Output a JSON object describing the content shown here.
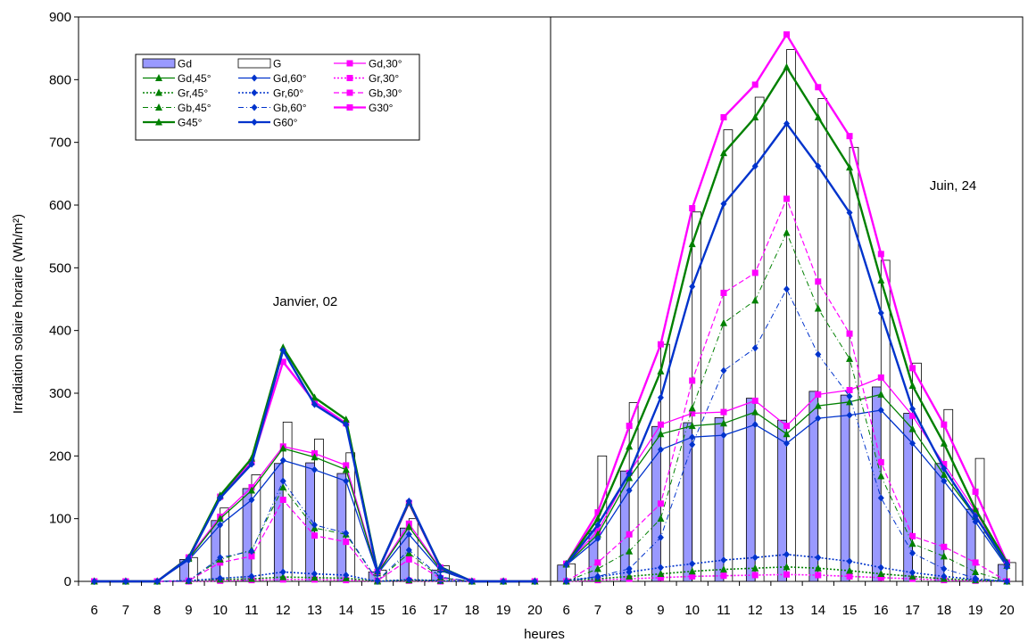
{
  "chart_data": {
    "type": "bar",
    "title": "",
    "xlabel": "heures",
    "ylabel": "Irradiation solaire horaire (Wh/m²)",
    "ylim": [
      0,
      900
    ],
    "yticks": [
      "0",
      "100",
      "200",
      "300",
      "400",
      "500",
      "600",
      "700",
      "800",
      "900"
    ],
    "categories": [
      "6",
      "7",
      "8",
      "9",
      "10",
      "11",
      "12",
      "13",
      "14",
      "15",
      "16",
      "17",
      "18",
      "19",
      "20",
      "6",
      "7",
      "8",
      "9",
      "10",
      "11",
      "12",
      "13",
      "14",
      "15",
      "16",
      "17",
      "18",
      "19",
      "20"
    ],
    "grid": "none",
    "legend_position": "top-left",
    "annotations": [
      "Janvier, 02",
      "Juin, 24"
    ],
    "colors": {
      "Gd": "#9999ff",
      "green": "#008000",
      "blue": "#0033cc",
      "magenta": "#ff00ff"
    },
    "series": [
      {
        "name": "Gd",
        "kind": "bar",
        "values": [
          0,
          0,
          0,
          35,
          97,
          148,
          188,
          189,
          172,
          15,
          85,
          18,
          0,
          0,
          0,
          26,
          80,
          176,
          247,
          253,
          261,
          292,
          257,
          303,
          297,
          310,
          268,
          188,
          115,
          27
        ]
      },
      {
        "name": "G",
        "kind": "bar",
        "values": [
          0,
          0,
          0,
          38,
          117,
          170,
          254,
          227,
          205,
          18,
          100,
          25,
          0,
          0,
          0,
          28,
          200,
          285,
          378,
          589,
          720,
          772,
          848,
          770,
          692,
          512,
          348,
          274,
          196,
          30
        ]
      },
      {
        "name": "Gd,30°",
        "values": [
          0,
          0,
          0,
          38,
          103,
          150,
          215,
          204,
          185,
          14,
          92,
          20,
          0,
          0,
          0,
          28,
          80,
          173,
          250,
          268,
          270,
          288,
          248,
          298,
          305,
          325,
          264,
          187,
          112,
          27
        ]
      },
      {
        "name": "Gd,45°",
        "values": [
          0,
          0,
          0,
          36,
          100,
          145,
          212,
          198,
          178,
          13,
          87,
          19,
          0,
          0,
          0,
          27,
          75,
          165,
          235,
          248,
          252,
          270,
          235,
          280,
          286,
          298,
          243,
          170,
          103,
          25
        ]
      },
      {
        "name": "Gd,60°",
        "values": [
          0,
          0,
          0,
          34,
          90,
          130,
          193,
          178,
          160,
          12,
          75,
          17,
          0,
          0,
          0,
          26,
          68,
          145,
          210,
          230,
          233,
          250,
          220,
          260,
          265,
          273,
          220,
          160,
          95,
          23
        ]
      },
      {
        "name": "Gr,30°",
        "values": [
          0,
          0,
          0,
          0,
          1,
          2,
          3,
          3,
          2,
          0,
          1,
          0,
          0,
          0,
          0,
          0,
          2,
          4,
          6,
          8,
          9,
          10,
          11,
          10,
          8,
          6,
          4,
          2,
          1,
          0
        ]
      },
      {
        "name": "Gr,45°",
        "values": [
          0,
          0,
          0,
          1,
          3,
          4,
          7,
          6,
          5,
          0,
          2,
          1,
          0,
          0,
          0,
          1,
          4,
          8,
          12,
          16,
          19,
          21,
          23,
          21,
          17,
          12,
          8,
          4,
          2,
          0
        ]
      },
      {
        "name": "Gr,60°",
        "values": [
          0,
          0,
          0,
          1,
          5,
          8,
          15,
          12,
          10,
          0,
          3,
          1,
          0,
          0,
          0,
          2,
          7,
          15,
          22,
          28,
          34,
          38,
          43,
          38,
          32,
          22,
          14,
          8,
          3,
          0
        ]
      },
      {
        "name": "Gb,30°",
        "values": [
          0,
          0,
          0,
          1,
          30,
          40,
          130,
          73,
          63,
          1,
          35,
          5,
          0,
          0,
          0,
          0,
          30,
          75,
          124,
          320,
          460,
          492,
          610,
          478,
          395,
          190,
          72,
          55,
          30,
          0
        ]
      },
      {
        "name": "Gb,45°",
        "values": [
          0,
          0,
          0,
          1,
          35,
          50,
          150,
          85,
          75,
          1,
          45,
          6,
          0,
          0,
          0,
          0,
          20,
          48,
          100,
          276,
          412,
          448,
          556,
          435,
          355,
          168,
          60,
          40,
          15,
          0
        ]
      },
      {
        "name": "Gb,60°",
        "values": [
          0,
          0,
          0,
          1,
          38,
          48,
          160,
          90,
          77,
          1,
          50,
          7,
          0,
          0,
          0,
          0,
          8,
          20,
          70,
          218,
          336,
          372,
          466,
          362,
          295,
          133,
          45,
          20,
          5,
          0
        ]
      },
      {
        "name": "G30°",
        "values": [
          0,
          0,
          0,
          38,
          135,
          190,
          350,
          286,
          252,
          15,
          125,
          22,
          0,
          0,
          0,
          28,
          110,
          248,
          378,
          595,
          740,
          792,
          872,
          788,
          710,
          522,
          340,
          250,
          143,
          30
        ]
      },
      {
        "name": "G45°",
        "values": [
          0,
          0,
          0,
          38,
          137,
          196,
          373,
          293,
          258,
          16,
          126,
          23,
          0,
          0,
          0,
          28,
          100,
          215,
          335,
          538,
          683,
          740,
          820,
          740,
          660,
          480,
          312,
          220,
          115,
          30
        ]
      },
      {
        "name": "G60°",
        "values": [
          0,
          0,
          0,
          37,
          133,
          187,
          368,
          282,
          250,
          15,
          128,
          22,
          0,
          0,
          0,
          27,
          90,
          172,
          293,
          470,
          602,
          662,
          730,
          662,
          588,
          428,
          275,
          180,
          104,
          28
        ]
      }
    ]
  }
}
